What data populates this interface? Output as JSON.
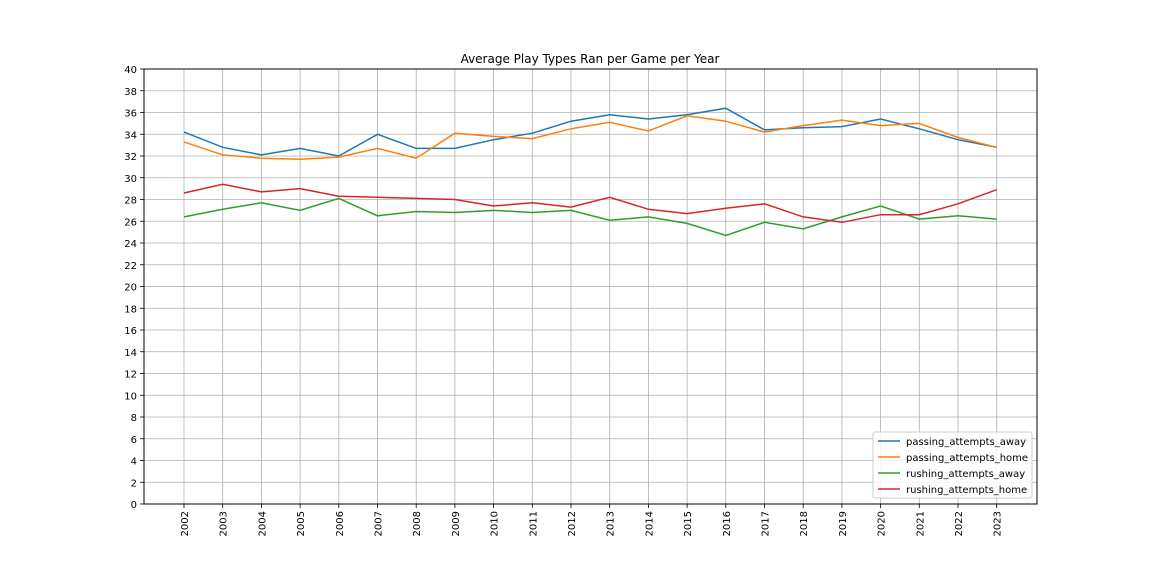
{
  "chart_data": {
    "type": "line",
    "title": "Average Play Types Ran per Game per Year",
    "xlabel": "",
    "ylabel": "",
    "x": [
      "2002",
      "2003",
      "2004",
      "2005",
      "2006",
      "2007",
      "2008",
      "2009",
      "2010",
      "2011",
      "2012",
      "2013",
      "2014",
      "2015",
      "2016",
      "2017",
      "2018",
      "2019",
      "2020",
      "2021",
      "2022",
      "2023"
    ],
    "ylim": [
      0,
      40
    ],
    "yticks": [
      0,
      2,
      4,
      6,
      8,
      10,
      12,
      14,
      16,
      18,
      20,
      22,
      24,
      26,
      28,
      30,
      32,
      34,
      36,
      38,
      40
    ],
    "grid": true,
    "legend_position": "lower-right",
    "series": [
      {
        "name": "passing_attempts_away",
        "color": "#1f77b4",
        "values": [
          34.2,
          32.8,
          32.1,
          32.7,
          32.0,
          34.0,
          32.7,
          32.7,
          33.5,
          34.1,
          35.2,
          35.8,
          35.4,
          35.8,
          36.4,
          34.4,
          34.6,
          34.7,
          35.4,
          34.5,
          33.5,
          32.8
        ]
      },
      {
        "name": "passing_attempts_home",
        "color": "#ff7f0e",
        "values": [
          33.3,
          32.1,
          31.8,
          31.7,
          31.9,
          32.7,
          31.8,
          34.1,
          33.8,
          33.6,
          34.5,
          35.1,
          34.3,
          35.7,
          35.2,
          34.2,
          34.8,
          35.3,
          34.8,
          35.0,
          33.7,
          32.8
        ]
      },
      {
        "name": "rushing_attempts_away",
        "color": "#2ca02c",
        "values": [
          26.4,
          27.1,
          27.7,
          27.0,
          28.1,
          26.5,
          26.9,
          26.8,
          27.0,
          26.8,
          27.0,
          26.1,
          26.4,
          25.8,
          24.7,
          25.9,
          25.3,
          26.4,
          27.4,
          26.2,
          26.5,
          26.2
        ]
      },
      {
        "name": "rushing_attempts_home",
        "color": "#d62728",
        "values": [
          28.6,
          29.4,
          28.7,
          29.0,
          28.3,
          28.2,
          28.1,
          28.0,
          27.4,
          27.7,
          27.3,
          28.2,
          27.1,
          26.7,
          27.2,
          27.6,
          26.4,
          25.9,
          26.6,
          26.6,
          27.6,
          28.9
        ]
      }
    ]
  }
}
